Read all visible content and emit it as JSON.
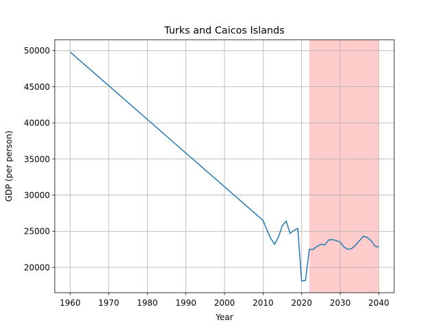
{
  "chart_data": {
    "type": "line",
    "title": "Turks and Caicos Islands",
    "xlabel": "Year",
    "ylabel": "GDP (per person)",
    "xlim": [
      1956,
      2044
    ],
    "ylim": [
      16500,
      51500
    ],
    "xticks": [
      1960,
      1970,
      1980,
      1990,
      2000,
      2010,
      2020,
      2030,
      2040
    ],
    "yticks": [
      20000,
      25000,
      30000,
      35000,
      40000,
      45000,
      50000
    ],
    "grid": true,
    "line_color": "#1f77b4",
    "shaded_region": {
      "x_start": 2022,
      "x_end": 2040,
      "color": "#ffcccc"
    },
    "series": [
      {
        "x": [
          1960,
          2010,
          2011,
          2012,
          2013,
          2014,
          2015,
          2016,
          2017,
          2018,
          2019,
          2020,
          2021,
          2022,
          2023,
          2024,
          2025,
          2026,
          2027,
          2028,
          2029,
          2030,
          2031,
          2032,
          2033,
          2034,
          2035,
          2036,
          2037,
          2038,
          2039,
          2040
        ],
        "y": [
          49800,
          26500,
          25200,
          24000,
          23200,
          24200,
          25800,
          26400,
          24700,
          25100,
          25400,
          18100,
          18200,
          22500,
          22500,
          22900,
          23200,
          23100,
          23800,
          23850,
          23700,
          23500,
          22800,
          22500,
          22600,
          23100,
          23700,
          24300,
          24150,
          23700,
          22950,
          22800
        ]
      }
    ]
  }
}
